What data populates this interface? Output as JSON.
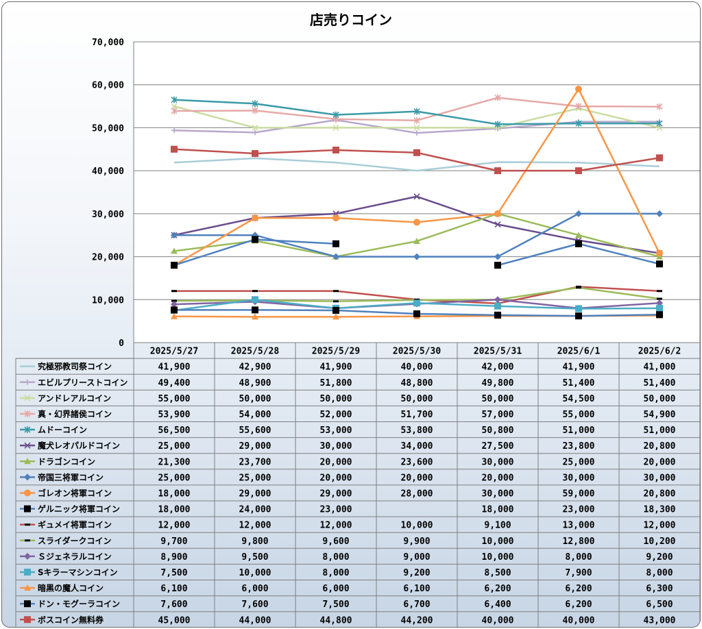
{
  "title": "店売りコイン",
  "chart_data": {
    "type": "line",
    "title": "店売りコイン",
    "ylim": [
      0,
      70000
    ],
    "y_ticks": [
      "0",
      "10,000",
      "20,000",
      "30,000",
      "40,000",
      "50,000",
      "60,000",
      "70,000"
    ],
    "grid": true,
    "legend": "data-table-below",
    "categories": [
      "2025/5/27",
      "2025/5/28",
      "2025/5/29",
      "2025/5/30",
      "2025/5/31",
      "2025/6/1",
      "2025/6/2"
    ],
    "series": [
      {
        "name": "究極邪教司祭コイン",
        "color": "#a9cdd8",
        "marker": "none",
        "values": [
          41900,
          42900,
          41900,
          40000,
          42000,
          41900,
          41000
        ],
        "labels": [
          "41,900",
          "42,900",
          "41,900",
          "40,000",
          "42,000",
          "41,900",
          "41,000"
        ]
      },
      {
        "name": "エビルプリーストコイン",
        "color": "#b8a7cc",
        "marker": "plus",
        "values": [
          49400,
          48900,
          51800,
          48800,
          49800,
          51400,
          51400
        ],
        "labels": [
          "49,400",
          "48,900",
          "51,800",
          "48,800",
          "49,800",
          "51,400",
          "51,400"
        ]
      },
      {
        "name": "アンドレアルコイン",
        "color": "#c9dca0",
        "marker": "x",
        "values": [
          55000,
          50000,
          50000,
          50000,
          50000,
          54500,
          50000
        ],
        "labels": [
          "55,000",
          "50,000",
          "50,000",
          "50,000",
          "50,000",
          "54,500",
          "50,000"
        ]
      },
      {
        "name": "真・幻界諸侯コイン",
        "color": "#e4a9a7",
        "marker": "star",
        "values": [
          53900,
          54000,
          52000,
          51700,
          57000,
          55000,
          54900
        ],
        "labels": [
          "53,900",
          "54,000",
          "52,000",
          "51,700",
          "57,000",
          "55,000",
          "54,900"
        ]
      },
      {
        "name": "ムドーコイン",
        "color": "#3a9aa8",
        "marker": "star",
        "values": [
          56500,
          55600,
          53000,
          53800,
          50800,
          51000,
          51000
        ],
        "labels": [
          "56,500",
          "55,600",
          "53,000",
          "53,800",
          "50,800",
          "51,000",
          "51,000"
        ]
      },
      {
        "name": "魔犬レオパルドコイン",
        "color": "#6a4c8c",
        "marker": "x",
        "values": [
          25000,
          29000,
          30000,
          34000,
          27500,
          23800,
          20800
        ],
        "labels": [
          "25,000",
          "29,000",
          "30,000",
          "34,000",
          "27,500",
          "23,800",
          "20,800"
        ]
      },
      {
        "name": "ドラゴンコイン",
        "color": "#9bbb59",
        "marker": "triangle",
        "values": [
          21300,
          23700,
          20000,
          23600,
          30000,
          25000,
          20000
        ],
        "labels": [
          "21,300",
          "23,700",
          "20,000",
          "23,600",
          "30,000",
          "25,000",
          "20,000"
        ]
      },
      {
        "name": "帝国三将軍コイン",
        "color": "#4f81bd",
        "marker": "diamond",
        "values": [
          25000,
          25000,
          20000,
          20000,
          20000,
          30000,
          30000
        ],
        "labels": [
          "25,000",
          "25,000",
          "20,000",
          "20,000",
          "20,000",
          "30,000",
          "30,000"
        ]
      },
      {
        "name": "ゴレオン将軍コイン",
        "color": "#f79646",
        "marker": "circle",
        "values": [
          18000,
          29000,
          29000,
          28000,
          30000,
          59000,
          20800
        ],
        "labels": [
          "18,000",
          "29,000",
          "29,000",
          "28,000",
          "30,000",
          "59,000",
          "20,800"
        ]
      },
      {
        "name": "ゲルニック将軍コイン",
        "color": "#4f81bd",
        "marker": "square-black",
        "values": [
          18000,
          24000,
          23000,
          null,
          18000,
          23000,
          18300
        ],
        "labels": [
          "18,000",
          "24,000",
          "23,000",
          "",
          "18,000",
          "23,000",
          "18,300"
        ]
      },
      {
        "name": "ギュメイ将軍コイン",
        "color": "#c0504d",
        "marker": "dash",
        "values": [
          12000,
          12000,
          12000,
          10000,
          9100,
          13000,
          12000
        ],
        "labels": [
          "12,000",
          "12,000",
          "12,000",
          "10,000",
          "9,100",
          "13,000",
          "12,000"
        ]
      },
      {
        "name": "スライダークコイン",
        "color": "#9bbb59",
        "marker": "dash",
        "values": [
          9700,
          9800,
          9600,
          9900,
          10000,
          12800,
          10200
        ],
        "labels": [
          "9,700",
          "9,800",
          "9,600",
          "9,900",
          "10,000",
          "12,800",
          "10,200"
        ]
      },
      {
        "name": "Ｓジェネラルコイン",
        "color": "#8064a2",
        "marker": "diamond",
        "values": [
          8900,
          9500,
          8000,
          9000,
          10000,
          8000,
          9200
        ],
        "labels": [
          "8,900",
          "9,500",
          "8,000",
          "9,000",
          "10,000",
          "8,000",
          "9,200"
        ]
      },
      {
        "name": "Sキラーマシンコイン",
        "color": "#4bacc6",
        "marker": "square",
        "values": [
          7500,
          10000,
          8000,
          9200,
          8500,
          7900,
          8000
        ],
        "labels": [
          "7,500",
          "10,000",
          "8,000",
          "9,200",
          "8,500",
          "7,900",
          "8,000"
        ]
      },
      {
        "name": "暗黒の魔人コイン",
        "color": "#f79646",
        "marker": "triangle",
        "values": [
          6100,
          6000,
          6000,
          6100,
          6200,
          6200,
          6300
        ],
        "labels": [
          "6,100",
          "6,000",
          "6,000",
          "6,100",
          "6,200",
          "6,200",
          "6,300"
        ]
      },
      {
        "name": "ドン・モグーラコイン",
        "color": "#4f81bd",
        "marker": "square-black",
        "values": [
          7600,
          7600,
          7500,
          6700,
          6400,
          6200,
          6500
        ],
        "labels": [
          "7,600",
          "7,600",
          "7,500",
          "6,700",
          "6,400",
          "6,200",
          "6,500"
        ]
      },
      {
        "name": "ボスコイン無料券",
        "color": "#c0504d",
        "marker": "square",
        "values": [
          45000,
          44000,
          44800,
          44200,
          40000,
          40000,
          43000
        ],
        "labels": [
          "45,000",
          "44,000",
          "44,800",
          "44,200",
          "40,000",
          "40,000",
          "43,000"
        ]
      }
    ]
  }
}
